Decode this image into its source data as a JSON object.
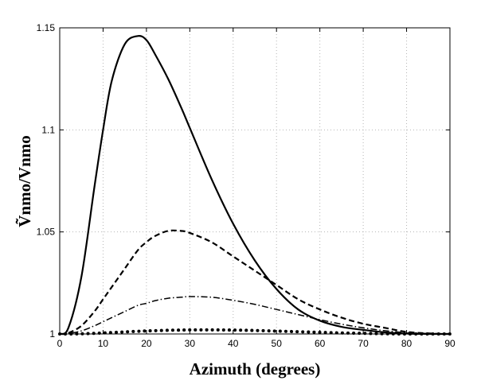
{
  "chart_data": {
    "type": "line",
    "title": "",
    "xlabel": "Azimuth  (degrees)",
    "ylabel": "Ṽnmo/Vnmo",
    "xlim": [
      0,
      90
    ],
    "ylim": [
      1.0,
      1.15
    ],
    "xticks": [
      0,
      10,
      20,
      30,
      40,
      50,
      60,
      70,
      80,
      90
    ],
    "xtick_labels": [
      "0",
      "10",
      "20",
      "30",
      "40",
      "50",
      "60",
      "70",
      "80",
      "90"
    ],
    "yticks": [
      1.0,
      1.05,
      1.1,
      1.15
    ],
    "ytick_labels": [
      "1",
      "1.05",
      "1.1",
      "1.15"
    ],
    "grid": true,
    "legend": "none",
    "x": [
      0,
      2,
      5,
      8,
      10,
      12,
      15,
      18,
      20,
      22,
      25,
      28,
      30,
      35,
      40,
      45,
      50,
      55,
      60,
      65,
      70,
      75,
      80,
      85,
      88,
      90
    ],
    "series": [
      {
        "style": "solid",
        "color": "#000000",
        "values": [
          1.0,
          1.003,
          1.028,
          1.072,
          1.1,
          1.124,
          1.142,
          1.146,
          1.144,
          1.137,
          1.125,
          1.111,
          1.101,
          1.076,
          1.054,
          1.036,
          1.022,
          1.012,
          1.0065,
          1.0035,
          1.002,
          1.0008,
          1.0002,
          1.0,
          1.0,
          1.0
        ]
      },
      {
        "style": "dashed",
        "color": "#000000",
        "values": [
          1.0,
          1.0005,
          1.004,
          1.011,
          1.017,
          1.023,
          1.032,
          1.041,
          1.045,
          1.048,
          1.0505,
          1.0505,
          1.0495,
          1.045,
          1.038,
          1.031,
          1.024,
          1.017,
          1.012,
          1.008,
          1.005,
          1.003,
          1.001,
          1.0003,
          1.0,
          1.0
        ]
      },
      {
        "style": "dashdot",
        "color": "#000000",
        "values": [
          1.0,
          1.0002,
          1.0015,
          1.004,
          1.006,
          1.008,
          1.011,
          1.014,
          1.015,
          1.0163,
          1.0175,
          1.018,
          1.0183,
          1.018,
          1.0165,
          1.0145,
          1.012,
          1.0095,
          1.007,
          1.0048,
          1.003,
          1.0016,
          1.0006,
          1.0002,
          1.0,
          1.0
        ]
      },
      {
        "style": "dotted",
        "color": "#000000",
        "values": [
          1.0,
          1.0,
          1.0001,
          1.0003,
          1.0005,
          1.0007,
          1.001,
          1.0013,
          1.0015,
          1.0016,
          1.0018,
          1.0019,
          1.002,
          1.002,
          1.0019,
          1.0017,
          1.0014,
          1.0011,
          1.0008,
          1.0005,
          1.0003,
          1.0001,
          1.0,
          1.0,
          1.0,
          1.0
        ]
      }
    ]
  }
}
